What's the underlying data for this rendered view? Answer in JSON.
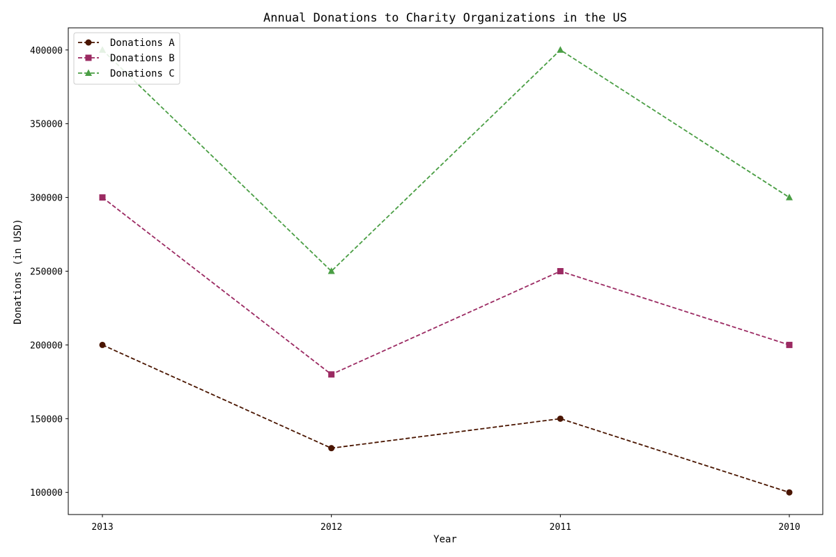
{
  "chart_data": {
    "type": "line",
    "title": "Annual Donations to Charity Organizations in the US",
    "xlabel": "Year",
    "ylabel": "Donations (in USD)",
    "categories": [
      "2013",
      "2012",
      "2011",
      "2010"
    ],
    "ylim": [
      85000,
      415000
    ],
    "yticks": [
      100000,
      150000,
      200000,
      250000,
      300000,
      350000,
      400000
    ],
    "grid": false,
    "legend_position": "top-left",
    "series": [
      {
        "name": "Donations A",
        "values": [
          200000,
          130000,
          150000,
          100000
        ],
        "color": "#4a1500",
        "marker": "circle",
        "linestyle": "dashed"
      },
      {
        "name": "Donations B",
        "values": [
          300000,
          180000,
          250000,
          200000
        ],
        "color": "#9b2a62",
        "marker": "square",
        "linestyle": "dashed"
      },
      {
        "name": "Donations C",
        "values": [
          400000,
          250000,
          400000,
          300000
        ],
        "color": "#4a9e44",
        "marker": "triangle",
        "linestyle": "dashed"
      }
    ]
  }
}
